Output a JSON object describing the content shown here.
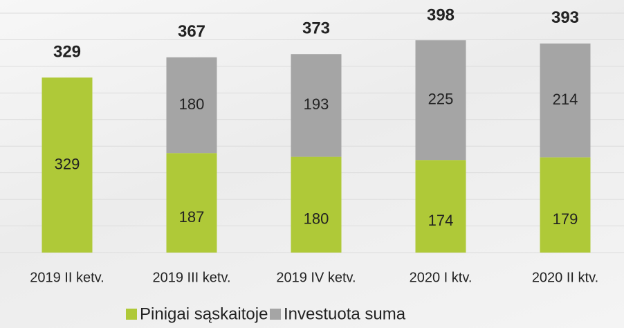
{
  "chart_data": {
    "type": "stacked_bar",
    "categories": [
      "2019 II ketv.",
      "2019 III ketv.",
      "2019 IV ketv.",
      "2020 I ktv.",
      "2020 II ktv."
    ],
    "series": [
      {
        "name": "Pinigai sąskaitoje",
        "color": "#afc938",
        "values": [
          329,
          187,
          180,
          174,
          179
        ]
      },
      {
        "name": "Investuota suma",
        "color": "#a5a5a5",
        "values": [
          null,
          180,
          193,
          225,
          214
        ]
      }
    ],
    "totals": [
      329,
      367,
      373,
      398,
      393
    ],
    "ylim": [
      0,
      450
    ],
    "yticks": [
      0,
      50,
      100,
      150,
      200,
      250,
      300,
      350,
      400,
      450
    ],
    "grid": true
  }
}
